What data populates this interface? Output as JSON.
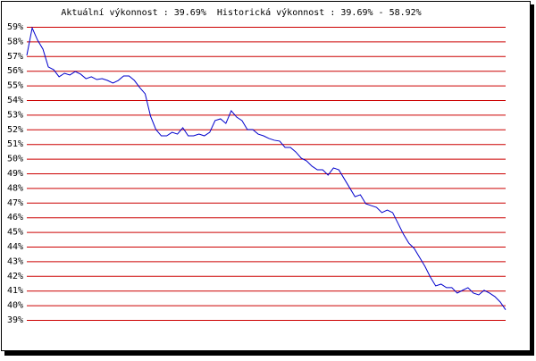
{
  "chart_data": {
    "type": "line",
    "title": "Aktuální výkonnost : 39.69%  Historická výkonnost : 39.69% - 58.92%",
    "series": [
      {
        "color": "#0000cc",
        "values": [
          57.05,
          58.92,
          58.09,
          57.48,
          56.26,
          56.07,
          55.59,
          55.83,
          55.71,
          55.95,
          55.77,
          55.46,
          55.59,
          55.4,
          55.46,
          55.34,
          55.16,
          55.34,
          55.65,
          55.65,
          55.34,
          54.85,
          54.43,
          52.9,
          51.99,
          51.56,
          51.56,
          51.8,
          51.68,
          52.11,
          51.56,
          51.56,
          51.68,
          51.56,
          51.8,
          52.6,
          52.72,
          52.41,
          53.27,
          52.84,
          52.6,
          51.99,
          51.99,
          51.68,
          51.56,
          51.38,
          51.26,
          51.2,
          50.77,
          50.77,
          50.46,
          50.04,
          49.85,
          49.49,
          49.24,
          49.24,
          48.88,
          49.37,
          49.24,
          48.63,
          48.02,
          47.41,
          47.54,
          46.93,
          46.8,
          46.68,
          46.32,
          46.5,
          46.32,
          45.59,
          44.85,
          44.24,
          43.88,
          43.27,
          42.66,
          41.93,
          41.32,
          41.44,
          41.2,
          41.2,
          40.83,
          41.02,
          41.2,
          40.83,
          40.71,
          41.02,
          40.83,
          40.59,
          40.22,
          39.69
        ]
      }
    ],
    "ylim": [
      39,
      59
    ],
    "yticks": [
      {
        "value": 39,
        "label": "39%"
      },
      {
        "value": 40,
        "label": "40%"
      },
      {
        "value": 41,
        "label": "41%"
      },
      {
        "value": 42,
        "label": "42%"
      },
      {
        "value": 43,
        "label": "43%"
      },
      {
        "value": 44,
        "label": "44%"
      },
      {
        "value": 45,
        "label": "45%"
      },
      {
        "value": 46,
        "label": "46%"
      },
      {
        "value": 47,
        "label": "47%"
      },
      {
        "value": 48,
        "label": "48%"
      },
      {
        "value": 49,
        "label": "49%"
      },
      {
        "value": 50,
        "label": "50%"
      },
      {
        "value": 51,
        "label": "51%"
      },
      {
        "value": 52,
        "label": "52%"
      },
      {
        "value": 53,
        "label": "53%"
      },
      {
        "value": 54,
        "label": "54%"
      },
      {
        "value": 55,
        "label": "55%"
      },
      {
        "value": 56,
        "label": "56%"
      },
      {
        "value": 57,
        "label": "57%"
      },
      {
        "value": 58,
        "label": "58%"
      },
      {
        "value": 59,
        "label": "59%"
      }
    ],
    "grid": true,
    "grid_color": "#cc0000"
  }
}
